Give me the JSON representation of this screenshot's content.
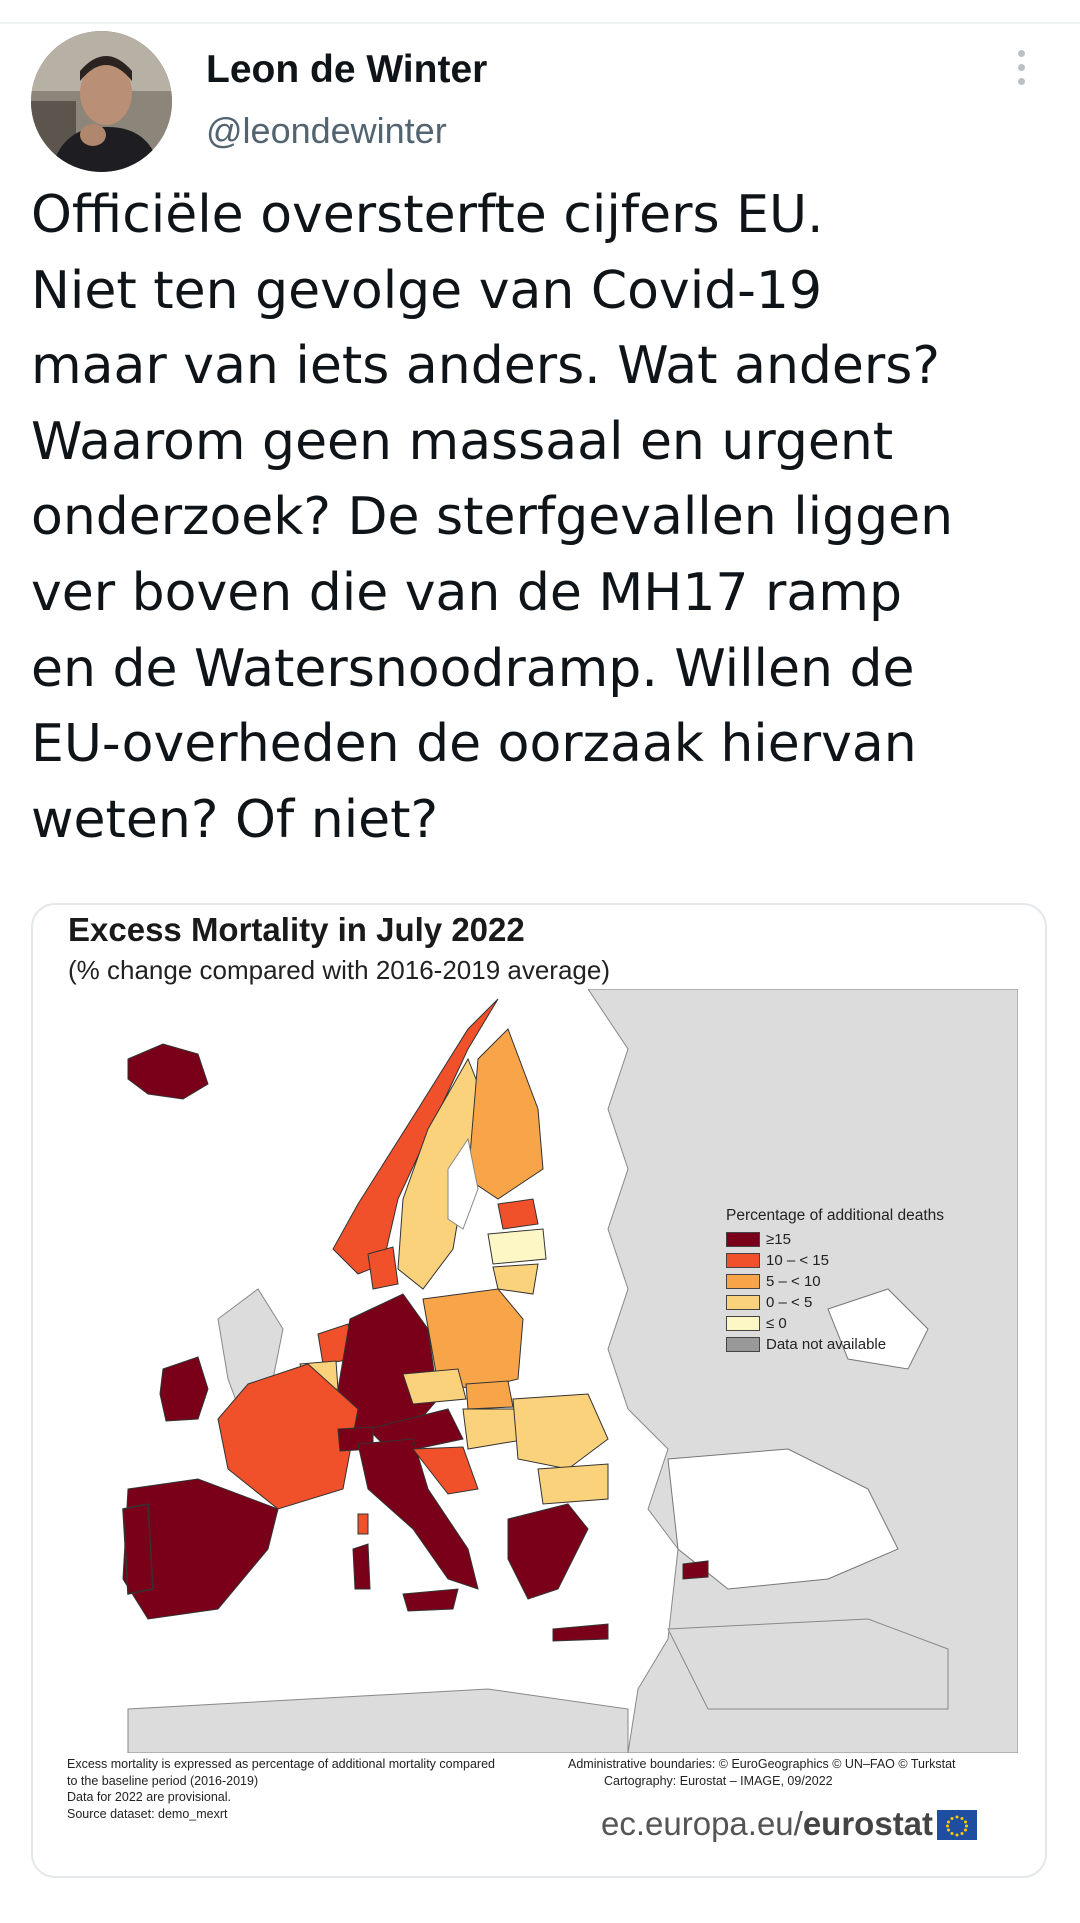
{
  "author": {
    "name": "Leon de Winter",
    "handle": "@leondewinter"
  },
  "tweet": {
    "text": "Officiële oversterfte cijfers EU.\nNiet ten gevolge van Covid-19\nmaar van iets anders. Wat anders?\nWaarom geen massaal en urgent\nonderzoek? De sterfgevallen liggen\nver boven die van de MH17 ramp\nen de Watersnoodramp. Willen de\nEU-overheden de oorzaak hiervan\nweten? Of niet?"
  },
  "map_image": {
    "title": "Excess Mortality in July 2022",
    "subtitle": "(% change compared with 2016-2019 average)",
    "legend": {
      "title": "Percentage of additional deaths",
      "items": [
        {
          "label": "≥15",
          "color": "#7a0019"
        },
        {
          "label": "10 – < 15",
          "color": "#f0502a"
        },
        {
          "label": "5 – < 10",
          "color": "#f7a548"
        },
        {
          "label": "0 – < 5",
          "color": "#fbd27c"
        },
        {
          "label": "≤ 0",
          "color": "#fdf6c5"
        },
        {
          "label": "Data not available",
          "color": "#999999"
        }
      ]
    },
    "footnote_left": [
      "Excess mortality is expressed as percentage of additional mortality compared",
      "to the baseline period (2016-2019)",
      "Data for 2022 are provisional.",
      "Source dataset: demo_mexrt"
    ],
    "footnote_right": [
      "Administrative boundaries: © EuroGeographics © UN–FAO © Turkstat",
      "Cartography: Eurostat – IMAGE, 09/2022"
    ],
    "source_prefix": "ec.europa.eu/",
    "source_brand": "eurostat",
    "colors": {
      "sea": "#ffffff",
      "non_eu": "#dcdcdc",
      "border": "#333333"
    }
  }
}
